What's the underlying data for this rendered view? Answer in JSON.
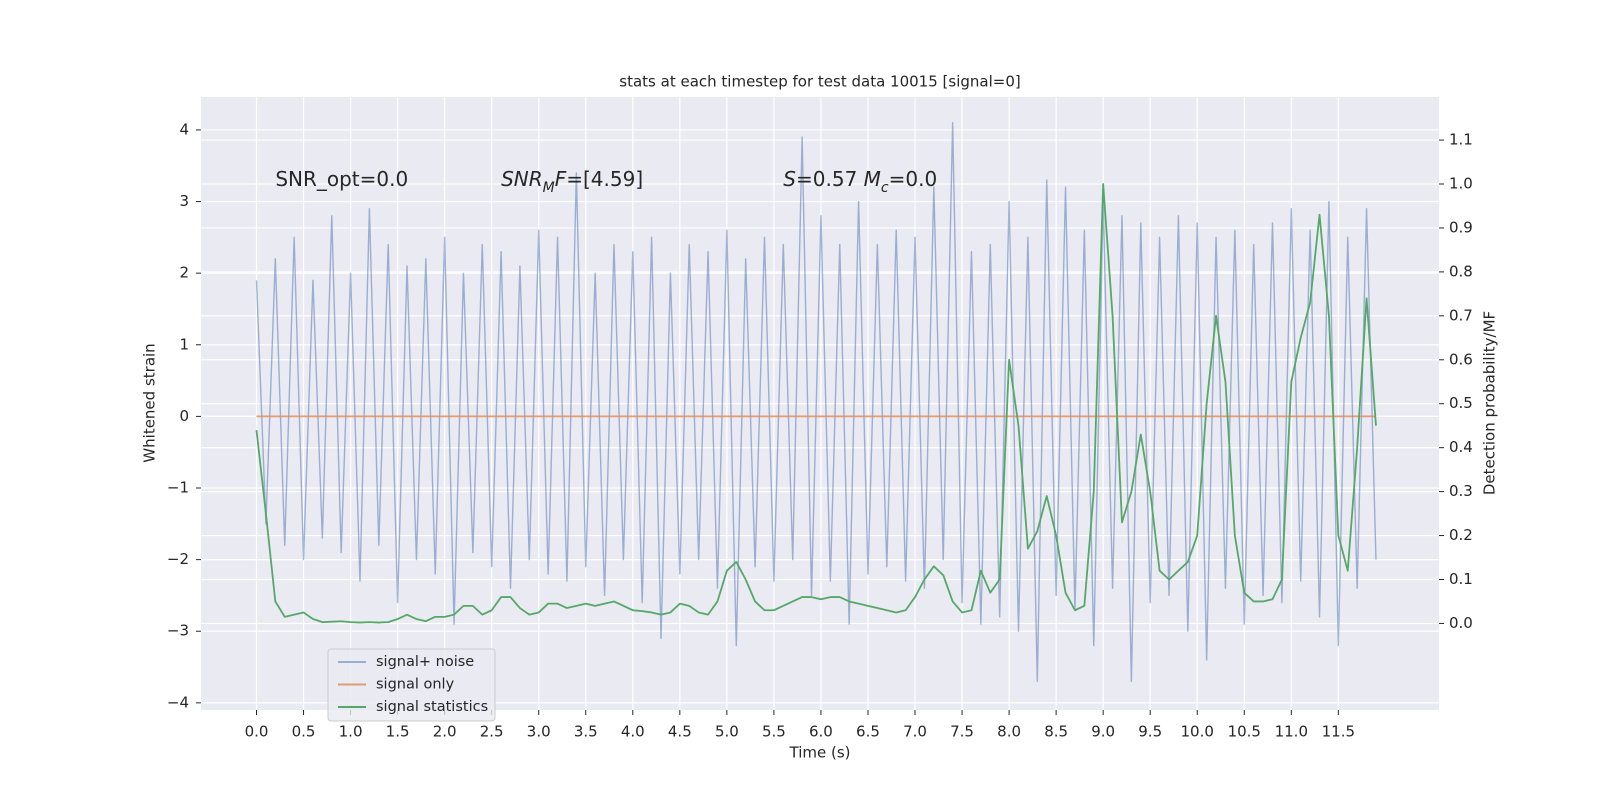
{
  "chart_data": {
    "type": "line",
    "title": "stats at each timestep for test data 10015 [signal=0]",
    "xlabel": "Time (s)",
    "ylabel": "Whitened strain",
    "y2label": "Detection probability/MF",
    "annotations": [
      {
        "x": 0.2,
        "y": 3.3,
        "parts": [
          {
            "text": "SNR_opt=0.0",
            "italic": false
          }
        ]
      },
      {
        "x": 2.6,
        "y": 3.3,
        "parts": [
          {
            "text": "SNR",
            "italic": true
          },
          {
            "text": "M",
            "italic": true,
            "sub": true
          },
          {
            "text": "F",
            "italic": true
          },
          {
            "text": "=[4.59]",
            "italic": false
          }
        ]
      },
      {
        "x": 5.6,
        "y": 3.3,
        "parts": [
          {
            "text": "S",
            "italic": true
          },
          {
            "text": "=0.57   ",
            "italic": false
          },
          {
            "text": "M",
            "italic": true
          },
          {
            "text": "c",
            "italic": true,
            "sub": true
          },
          {
            "text": "=0.0",
            "italic": false
          }
        ]
      }
    ],
    "x": [
      0,
      0.1,
      0.2,
      0.3,
      0.4,
      0.5,
      0.6,
      0.7,
      0.8,
      0.9,
      1,
      1.1,
      1.2,
      1.3,
      1.4,
      1.5,
      1.6,
      1.7,
      1.8,
      1.9,
      2,
      2.1,
      2.2,
      2.3,
      2.4,
      2.5,
      2.6,
      2.7,
      2.8,
      2.9,
      3,
      3.1,
      3.2,
      3.3,
      3.4,
      3.5,
      3.6,
      3.7,
      3.8,
      3.9,
      4,
      4.1,
      4.2,
      4.3,
      4.4,
      4.5,
      4.6,
      4.7,
      4.8,
      4.9,
      5,
      5.1,
      5.2,
      5.3,
      5.4,
      5.5,
      5.6,
      5.7,
      5.8,
      5.9,
      6,
      6.1,
      6.2,
      6.3,
      6.4,
      6.5,
      6.6,
      6.7,
      6.8,
      6.9,
      7,
      7.1,
      7.2,
      7.3,
      7.4,
      7.5,
      7.6,
      7.7,
      7.8,
      7.9,
      8,
      8.1,
      8.2,
      8.3,
      8.4,
      8.5,
      8.6,
      8.7,
      8.8,
      8.9,
      9,
      9.1,
      9.2,
      9.3,
      9.4,
      9.5,
      9.6,
      9.7,
      9.8,
      9.9,
      10,
      10.1,
      10.2,
      10.3,
      10.4,
      10.5,
      10.6,
      10.7,
      10.8,
      10.9,
      11,
      11.1,
      11.2,
      11.3,
      11.4,
      11.5,
      11.6,
      11.7,
      11.8,
      11.9
    ],
    "series": [
      {
        "name": "signal+ noise",
        "color": "#4c72b0",
        "alpha": 0.5,
        "axis": "y",
        "values": [
          1.9,
          -1.5,
          2.2,
          -1.8,
          2.5,
          -2.0,
          1.9,
          -1.7,
          2.8,
          -1.9,
          2.0,
          -2.3,
          2.9,
          -1.8,
          2.4,
          -2.6,
          2.1,
          -2.0,
          2.2,
          -2.2,
          2.5,
          -2.9,
          2.0,
          -1.9,
          2.4,
          -2.1,
          2.3,
          -2.4,
          2.1,
          -2.0,
          2.6,
          -2.2,
          2.5,
          -2.3,
          3.4,
          -2.1,
          2.0,
          -2.5,
          2.4,
          -2.0,
          2.3,
          -2.6,
          2.5,
          -3.1,
          2.0,
          -2.2,
          2.4,
          -2.0,
          2.3,
          -2.4,
          2.6,
          -3.2,
          2.2,
          -2.1,
          2.5,
          -2.3,
          2.4,
          -2.0,
          3.9,
          -2.5,
          2.8,
          -2.3,
          2.4,
          -2.9,
          3.0,
          -2.2,
          2.4,
          -2.1,
          2.6,
          -2.3,
          2.5,
          -2.4,
          3.2,
          -2.0,
          4.1,
          -2.6,
          2.3,
          -2.9,
          2.4,
          -2.8,
          3.0,
          -3.0,
          2.5,
          -3.7,
          3.3,
          -2.5,
          3.2,
          -2.7,
          2.6,
          -3.2,
          3.0,
          -2.4,
          2.8,
          -3.7,
          2.7,
          -2.6,
          2.5,
          -2.5,
          2.8,
          -3.0,
          2.7,
          -3.4,
          2.5,
          -2.4,
          2.6,
          -2.9,
          2.4,
          -2.5,
          2.7,
          -2.6,
          2.9,
          -2.3,
          2.6,
          -2.8,
          3.0,
          -3.2,
          2.5,
          -2.4,
          2.9,
          -2.0
        ]
      },
      {
        "name": "signal only",
        "color": "#dd8452",
        "alpha": 0.8,
        "axis": "y",
        "values": [
          0,
          0,
          0,
          0,
          0,
          0,
          0,
          0,
          0,
          0,
          0,
          0,
          0,
          0,
          0,
          0,
          0,
          0,
          0,
          0,
          0,
          0,
          0,
          0,
          0,
          0,
          0,
          0,
          0,
          0,
          0,
          0,
          0,
          0,
          0,
          0,
          0,
          0,
          0,
          0,
          0,
          0,
          0,
          0,
          0,
          0,
          0,
          0,
          0,
          0,
          0,
          0,
          0,
          0,
          0,
          0,
          0,
          0,
          0,
          0,
          0,
          0,
          0,
          0,
          0,
          0,
          0,
          0,
          0,
          0,
          0,
          0,
          0,
          0,
          0,
          0,
          0,
          0,
          0,
          0,
          0,
          0,
          0,
          0,
          0,
          0,
          0,
          0,
          0,
          0,
          0,
          0,
          0,
          0,
          0,
          0,
          0,
          0,
          0,
          0,
          0,
          0,
          0,
          0,
          0,
          0,
          0,
          0,
          0,
          0,
          0,
          0,
          0,
          0,
          0,
          0,
          0,
          0,
          0,
          0
        ]
      },
      {
        "name": "signal statistics",
        "color": "#55a868",
        "alpha": 1,
        "axis": "y2",
        "values": [
          0.44,
          0.25,
          0.05,
          0.015,
          0.02,
          0.025,
          0.01,
          0.003,
          0.004,
          0.005,
          0.003,
          0.002,
          0.003,
          0.002,
          0.003,
          0.01,
          0.02,
          0.01,
          0.005,
          0.015,
          0.015,
          0.02,
          0.04,
          0.04,
          0.02,
          0.03,
          0.06,
          0.06,
          0.035,
          0.02,
          0.025,
          0.045,
          0.045,
          0.035,
          0.04,
          0.045,
          0.04,
          0.045,
          0.05,
          0.04,
          0.03,
          0.028,
          0.025,
          0.02,
          0.025,
          0.045,
          0.04,
          0.025,
          0.02,
          0.05,
          0.12,
          0.14,
          0.1,
          0.05,
          0.03,
          0.03,
          0.04,
          0.05,
          0.06,
          0.06,
          0.055,
          0.06,
          0.06,
          0.05,
          0.045,
          0.04,
          0.035,
          0.03,
          0.025,
          0.03,
          0.06,
          0.1,
          0.13,
          0.11,
          0.05,
          0.025,
          0.03,
          0.12,
          0.07,
          0.1,
          0.6,
          0.45,
          0.17,
          0.21,
          0.29,
          0.2,
          0.07,
          0.03,
          0.04,
          0.3,
          1.0,
          0.7,
          0.23,
          0.3,
          0.43,
          0.3,
          0.12,
          0.1,
          0.12,
          0.14,
          0.2,
          0.5,
          0.7,
          0.55,
          0.2,
          0.07,
          0.05,
          0.05,
          0.055,
          0.1,
          0.55,
          0.65,
          0.73,
          0.93,
          0.7,
          0.2,
          0.12,
          0.4,
          0.74,
          0.45
        ]
      }
    ],
    "xlim": [
      -0.59,
      12.57
    ],
    "xticks": [
      {
        "value": 0,
        "label": "0.0"
      },
      0.5,
      {
        "value": 1,
        "label": "1.0"
      },
      1.5,
      {
        "value": 2,
        "label": "2.0"
      },
      2.5,
      {
        "value": 3,
        "label": "3.0"
      },
      3.5,
      {
        "value": 4,
        "label": "4.0"
      },
      4.5,
      {
        "value": 5,
        "label": "5.0"
      },
      5.5,
      {
        "value": 6,
        "label": "6.0"
      },
      6.5,
      {
        "value": 7,
        "label": "7.0"
      },
      7.5,
      {
        "value": 8,
        "label": "8.0"
      },
      8.5,
      {
        "value": 9,
        "label": "9.0"
      },
      9.5,
      {
        "value": 10,
        "label": "10.0"
      },
      10.5,
      {
        "value": 11,
        "label": "11.0"
      },
      11.5
    ],
    "ylim": [
      -4.1,
      4.46
    ],
    "yticks": [
      {
        "value": -4,
        "label": "−4"
      },
      {
        "value": -3,
        "label": "−3"
      },
      {
        "value": -2,
        "label": "−2"
      },
      {
        "value": -1,
        "label": "−1"
      },
      0,
      1,
      2,
      3,
      4
    ],
    "y2lim": [
      -0.197,
      1.198
    ],
    "y2ticks": [
      {
        "value": 0,
        "label": "0.0"
      },
      0.1,
      0.2,
      0.3,
      0.4,
      0.5,
      0.6,
      0.7,
      0.8,
      0.9,
      {
        "value": 1,
        "label": "1.0"
      },
      1.1
    ],
    "grid": true
  }
}
